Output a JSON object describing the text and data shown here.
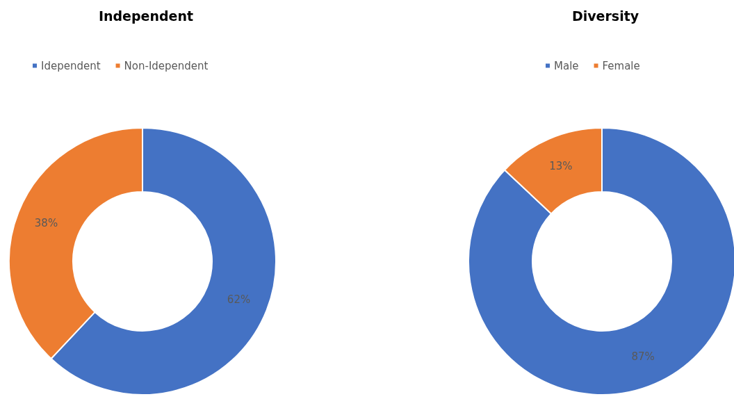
{
  "chart_data": [
    {
      "type": "donut",
      "title": "Independent",
      "categories": [
        "Idependent",
        "Non-Idependent"
      ],
      "values": [
        62,
        38
      ],
      "colors": [
        "#4472c4",
        "#ed7d31"
      ],
      "value_labels": [
        "62%",
        "38%"
      ],
      "legend": "top"
    },
    {
      "type": "donut",
      "title": "Diversity",
      "categories": [
        "Male",
        "Female"
      ],
      "values": [
        87,
        13
      ],
      "colors": [
        "#4472c4",
        "#ed7d31"
      ],
      "value_labels": [
        "87%",
        "13%"
      ],
      "legend": "top"
    }
  ]
}
